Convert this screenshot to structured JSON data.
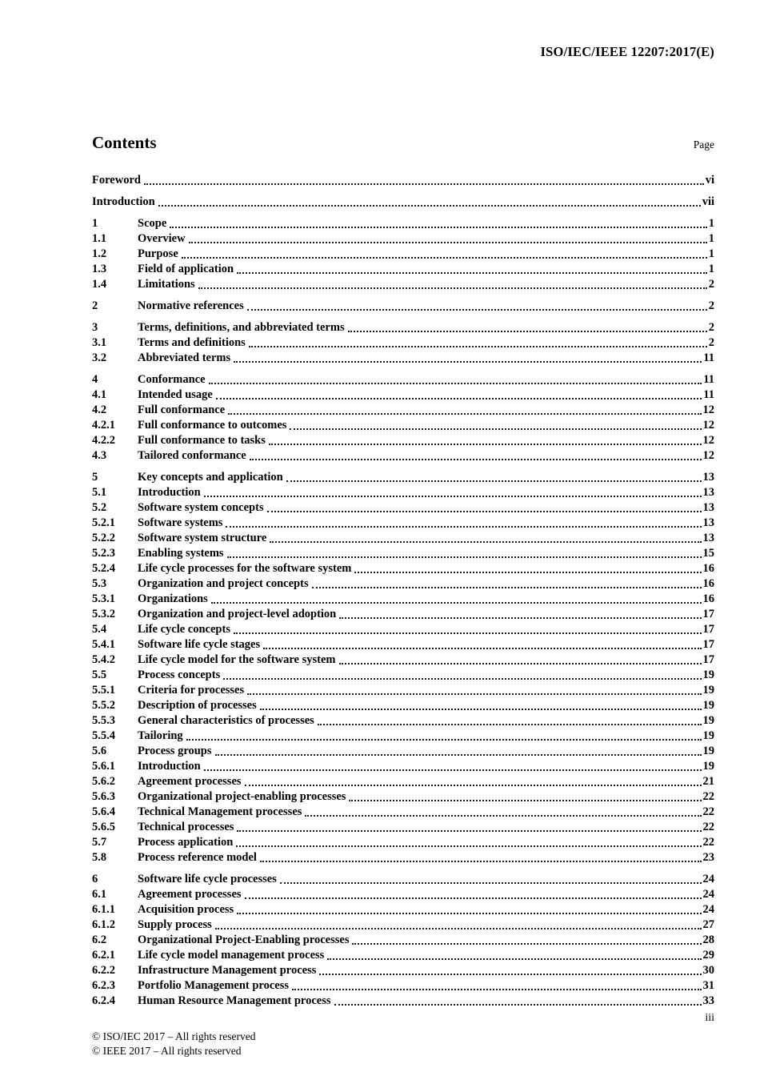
{
  "header": {
    "doc_ref": "ISO/IEC/IEEE 12207:2017(E)"
  },
  "contents": {
    "title": "Contents",
    "page_label": "Page"
  },
  "toc": {
    "groups": [
      [
        {
          "num": "",
          "title": "Foreword",
          "page": "vi"
        }
      ],
      [
        {
          "num": "",
          "title": "Introduction",
          "page": "vii"
        }
      ],
      [
        {
          "num": "1",
          "title": "Scope",
          "page": "1"
        },
        {
          "num": "1.1",
          "title": "Overview",
          "page": "1"
        },
        {
          "num": "1.2",
          "title": "Purpose",
          "page": "1"
        },
        {
          "num": "1.3",
          "title": "Field of application",
          "page": "1"
        },
        {
          "num": "1.4",
          "title": "Limitations",
          "page": "2"
        }
      ],
      [
        {
          "num": "2",
          "title": "Normative references",
          "page": "2"
        }
      ],
      [
        {
          "num": "3",
          "title": "Terms, definitions, and abbreviated terms",
          "page": "2"
        },
        {
          "num": "3.1",
          "title": "Terms and definitions",
          "page": "2"
        },
        {
          "num": "3.2",
          "title": "Abbreviated terms",
          "page": "11"
        }
      ],
      [
        {
          "num": "4",
          "title": "Conformance",
          "page": "11"
        },
        {
          "num": "4.1",
          "title": "Intended usage",
          "page": "11"
        },
        {
          "num": "4.2",
          "title": "Full conformance",
          "page": "12"
        },
        {
          "num": "4.2.1",
          "title": "Full conformance to outcomes",
          "page": "12"
        },
        {
          "num": "4.2.2",
          "title": "Full conformance to tasks",
          "page": "12"
        },
        {
          "num": "4.3",
          "title": "Tailored conformance",
          "page": "12"
        }
      ],
      [
        {
          "num": "5",
          "title": "Key concepts and application",
          "page": "13"
        },
        {
          "num": "5.1",
          "title": "Introduction",
          "page": "13"
        },
        {
          "num": "5.2",
          "title": "Software system concepts",
          "page": "13"
        },
        {
          "num": "5.2.1",
          "title": "Software systems",
          "page": "13"
        },
        {
          "num": "5.2.2",
          "title": "Software system structure",
          "page": "13"
        },
        {
          "num": "5.2.3",
          "title": "Enabling systems",
          "page": "15"
        },
        {
          "num": "5.2.4",
          "title": "Life cycle processes for the software system",
          "page": "16"
        },
        {
          "num": "5.3",
          "title": "Organization and project concepts",
          "page": "16"
        },
        {
          "num": "5.3.1",
          "title": "Organizations",
          "page": "16"
        },
        {
          "num": "5.3.2",
          "title": "Organization and project-level adoption",
          "page": "17"
        },
        {
          "num": "5.4",
          "title": "Life cycle concepts",
          "page": "17"
        },
        {
          "num": "5.4.1",
          "title": "Software life cycle stages",
          "page": "17"
        },
        {
          "num": "5.4.2",
          "title": "Life cycle model for the software system",
          "page": "17"
        },
        {
          "num": "5.5",
          "title": "Process concepts",
          "page": "19"
        },
        {
          "num": "5.5.1",
          "title": "Criteria for processes",
          "page": "19"
        },
        {
          "num": "5.5.2",
          "title": "Description of processes",
          "page": "19"
        },
        {
          "num": "5.5.3",
          "title": "General characteristics of processes",
          "page": "19"
        },
        {
          "num": "5.5.4",
          "title": "Tailoring",
          "page": "19"
        },
        {
          "num": "5.6",
          "title": "Process groups",
          "page": "19"
        },
        {
          "num": "5.6.1",
          "title": "Introduction",
          "page": "19"
        },
        {
          "num": "5.6.2",
          "title": "Agreement processes",
          "page": "21"
        },
        {
          "num": "5.6.3",
          "title": "Organizational project-enabling processes",
          "page": "22"
        },
        {
          "num": "5.6.4",
          "title": "Technical Management processes",
          "page": "22"
        },
        {
          "num": "5.6.5",
          "title": "Technical processes",
          "page": "22"
        },
        {
          "num": "5.7",
          "title": "Process application",
          "page": "22"
        },
        {
          "num": "5.8",
          "title": "Process reference model",
          "page": "23"
        }
      ],
      [
        {
          "num": "6",
          "title": "Software life cycle processes",
          "page": "24"
        },
        {
          "num": "6.1",
          "title": "Agreement processes",
          "page": "24"
        },
        {
          "num": "6.1.1",
          "title": "Acquisition process",
          "page": "24"
        },
        {
          "num": "6.1.2",
          "title": "Supply process",
          "page": "27"
        },
        {
          "num": "6.2",
          "title": "Organizational Project-Enabling processes",
          "page": "28"
        },
        {
          "num": "6.2.1",
          "title": "Life cycle model management process",
          "page": "29"
        },
        {
          "num": "6.2.2",
          "title": "Infrastructure Management process",
          "page": "30"
        },
        {
          "num": "6.2.3",
          "title": "Portfolio Management process",
          "page": "31"
        },
        {
          "num": "6.2.4",
          "title": "Human Resource Management process",
          "page": "33"
        }
      ]
    ]
  },
  "footer": {
    "page_number": "iii",
    "copyright_iso": "© ISO/IEC 2017 – All rights reserved",
    "copyright_ieee": "© IEEE 2017 – All rights reserved"
  }
}
